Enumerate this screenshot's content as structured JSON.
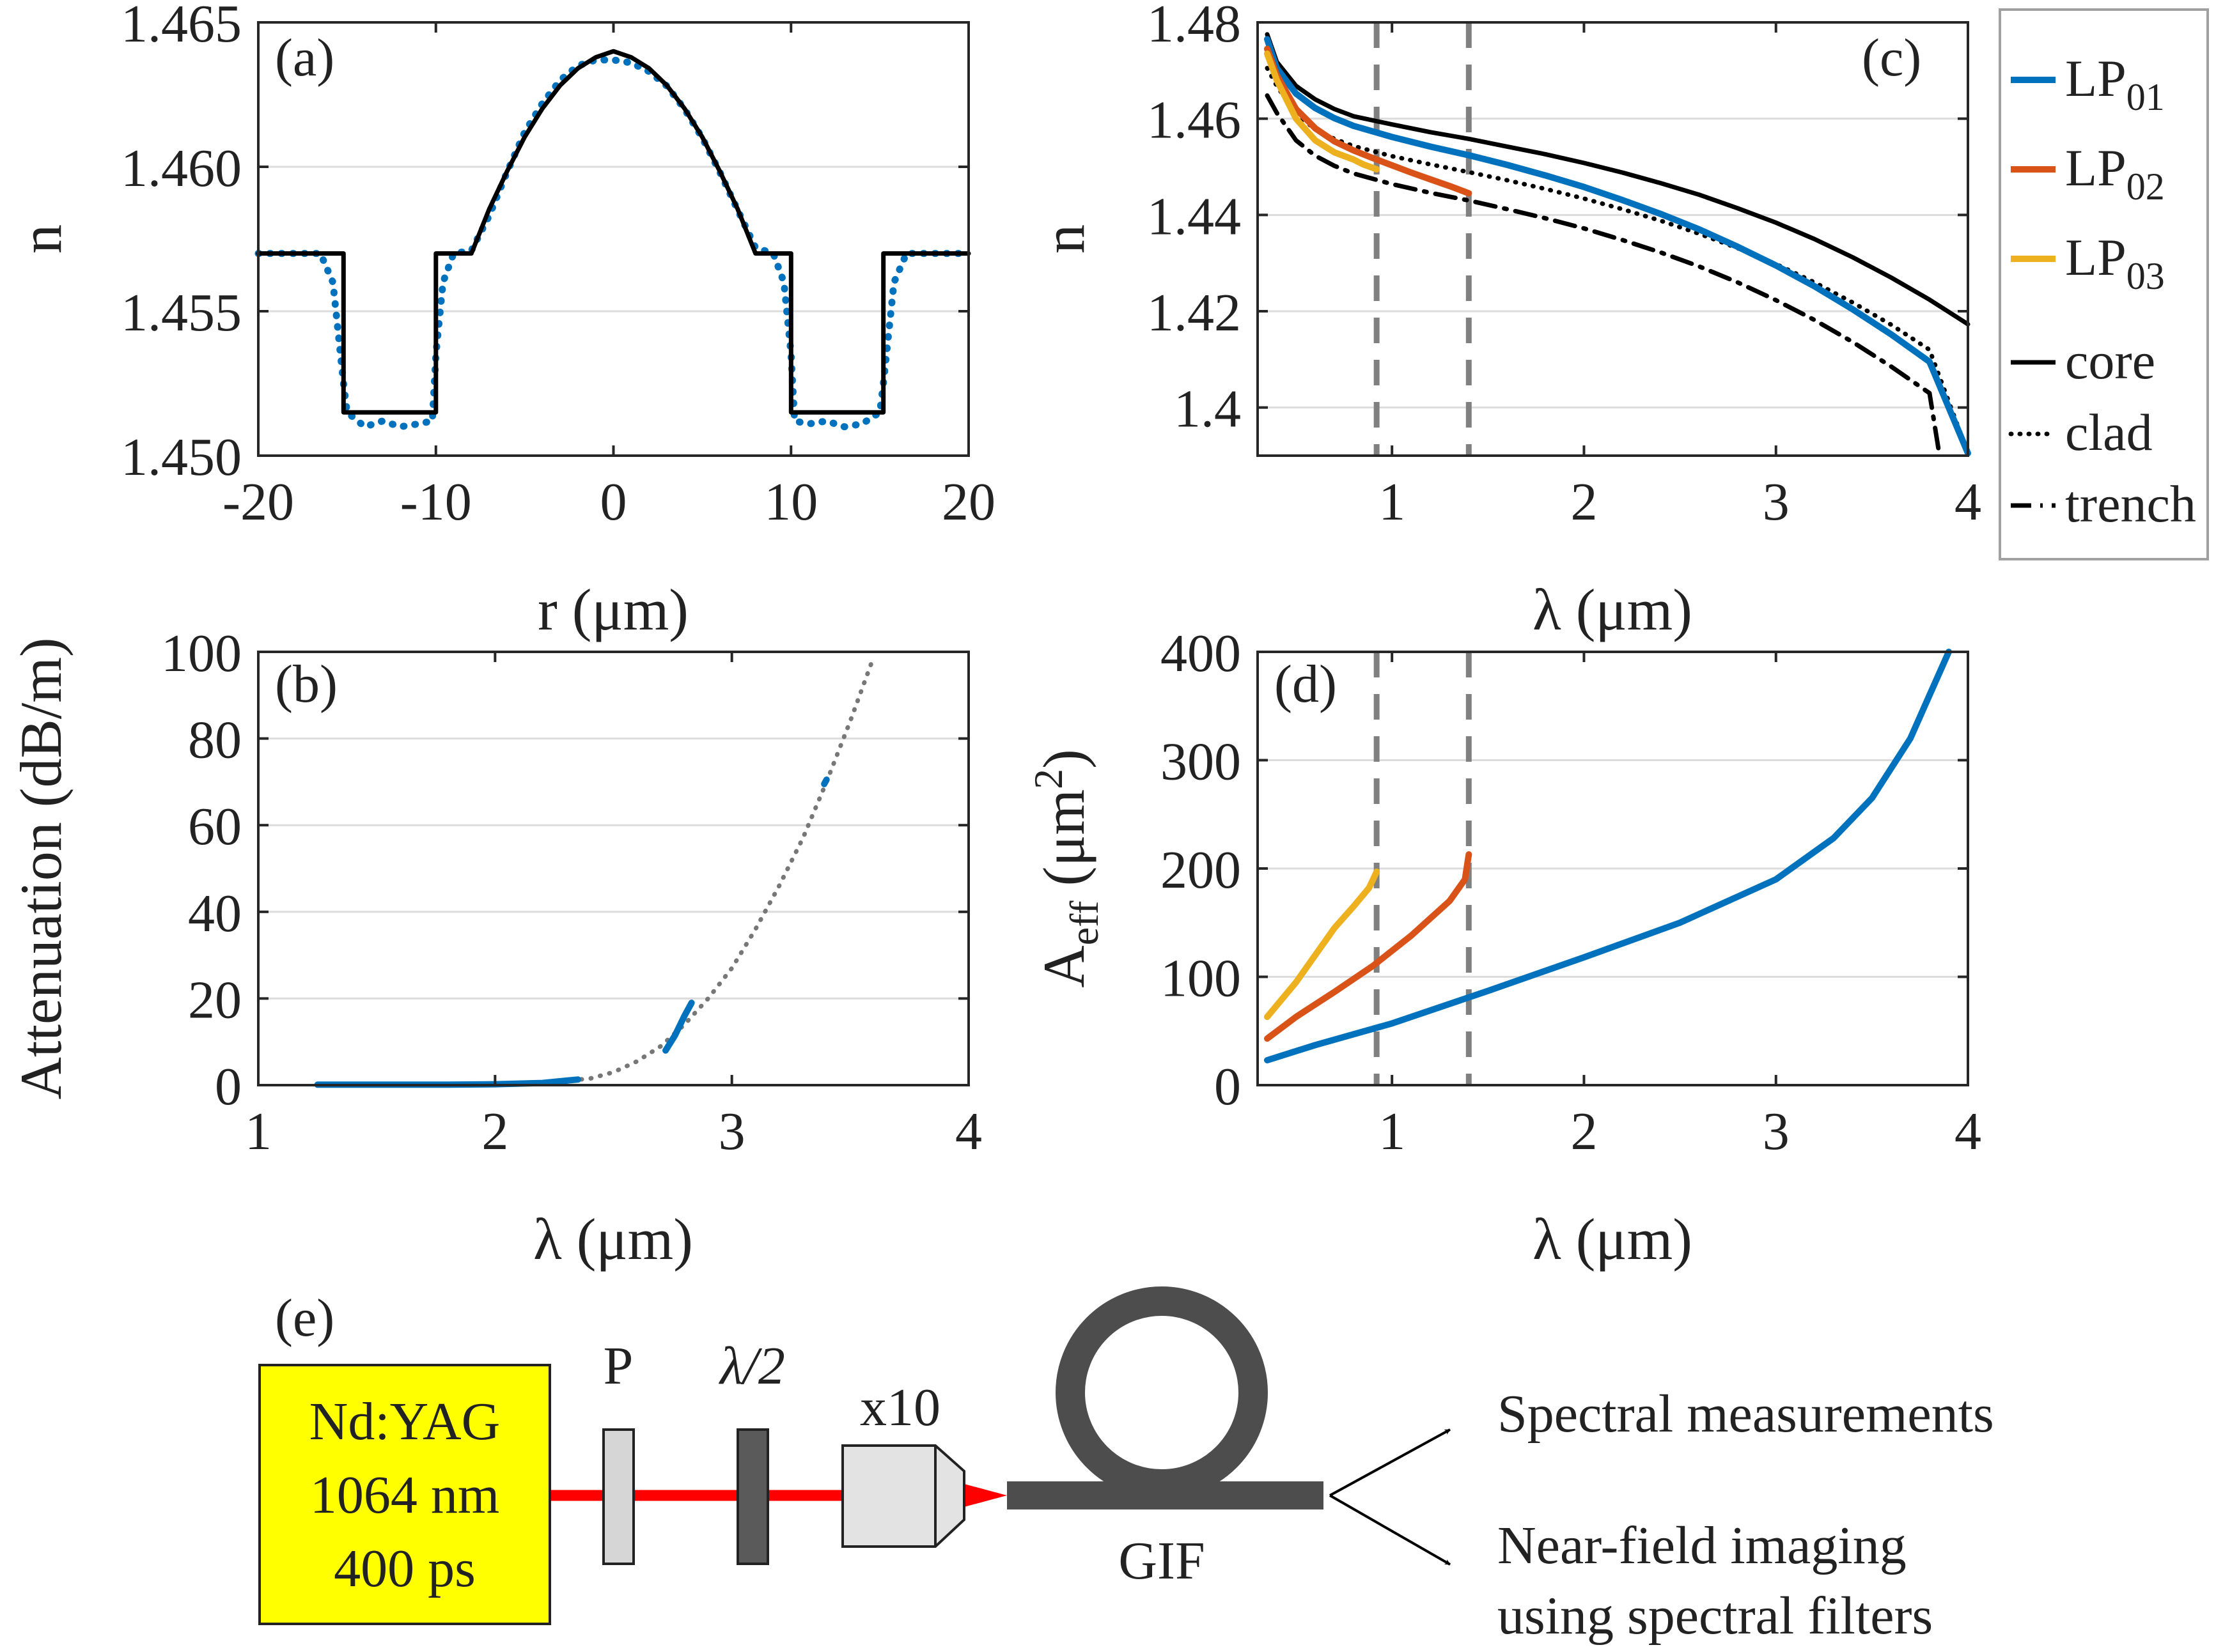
{
  "colors": {
    "lp01": "#0072bd",
    "lp02": "#d95319",
    "lp03": "#edb120",
    "model": "#000000",
    "fit": "#777777",
    "cutoff": "#808080",
    "laser_box": "#ffff00",
    "beam": "#ff0000",
    "fiber": "#4d4d4d"
  },
  "chart_data": [
    {
      "id": "a",
      "type": "line",
      "panel_label": "(a)",
      "xlabel": "r (μm)",
      "ylabel": "n",
      "xlim": [
        -20,
        20
      ],
      "ylim": [
        1.45,
        1.465
      ],
      "xticks": [
        "-20",
        "-10",
        "0",
        "10",
        "20"
      ],
      "yticks": [
        "1.450",
        "1.455",
        "1.460",
        "1.465"
      ],
      "grid": "horizontal",
      "series": [
        {
          "style": "dotted-blue",
          "x": [
            -20,
            -16.5,
            -15.8,
            -15.2,
            -15,
            -14,
            -13,
            -12,
            -11,
            -10.2,
            -10,
            -9.6,
            -9,
            -8,
            -7,
            -6,
            -5,
            -4,
            -3,
            -2,
            -1,
            0,
            1,
            2,
            3,
            4,
            5,
            6,
            7,
            8,
            9,
            9.6,
            10,
            10.2,
            11,
            12,
            13,
            14,
            15,
            15.2,
            15.8,
            16.5,
            20
          ],
          "y": [
            1.457,
            1.457,
            1.456,
            1.4525,
            1.4515,
            1.451,
            1.4512,
            1.451,
            1.4511,
            1.4512,
            1.4535,
            1.456,
            1.457,
            1.4571,
            1.4583,
            1.4598,
            1.4612,
            1.4622,
            1.463,
            1.4635,
            1.4637,
            1.4637,
            1.4636,
            1.4633,
            1.4628,
            1.462,
            1.461,
            1.4598,
            1.4585,
            1.4572,
            1.457,
            1.456,
            1.4535,
            1.4512,
            1.4511,
            1.4512,
            1.451,
            1.4511,
            1.4515,
            1.4525,
            1.456,
            1.457,
            1.457
          ]
        },
        {
          "style": "solid-black",
          "x": [
            -20,
            -15.2,
            -15.2,
            -10,
            -10,
            -8,
            -7,
            -6,
            -5,
            -4,
            -3,
            -2,
            -1,
            0,
            1,
            2,
            3,
            4,
            5,
            6,
            7,
            8,
            10,
            10,
            15.2,
            15.2,
            20
          ],
          "y": [
            1.457,
            1.457,
            1.4515,
            1.4515,
            1.457,
            1.457,
            1.45853,
            1.45983,
            1.46103,
            1.46202,
            1.46282,
            1.46341,
            1.46379,
            1.464,
            1.46379,
            1.46341,
            1.46282,
            1.46202,
            1.46103,
            1.45983,
            1.45853,
            1.457,
            1.457,
            1.4515,
            1.4515,
            1.457,
            1.457
          ]
        }
      ]
    },
    {
      "id": "b",
      "type": "line",
      "panel_label": "(b)",
      "xlabel": "λ (μm)",
      "ylabel": "Attenuation (dB/m)",
      "xlim": [
        1,
        4
      ],
      "ylim": [
        0,
        100
      ],
      "xticks": [
        "1",
        "2",
        "3",
        "4"
      ],
      "yticks": [
        "0",
        "20",
        "40",
        "60",
        "80",
        "100"
      ],
      "grid": "horizontal",
      "series": [
        {
          "style": "dotted-gray",
          "x": [
            2.0,
            2.2,
            2.4,
            2.5,
            2.6,
            2.7,
            2.8,
            2.9,
            3.0,
            3.1,
            3.2,
            3.3,
            3.4,
            3.5,
            3.6
          ],
          "y": [
            0.2,
            0.6,
            1.5,
            3.0,
            5.5,
            9.0,
            14.0,
            20.0,
            27.0,
            36.0,
            46.0,
            57.0,
            70.0,
            84.0,
            99.0
          ]
        },
        {
          "style": "solid-blue",
          "x": [
            1.25,
            1.5,
            1.8,
            2.0,
            2.2,
            2.35
          ],
          "y": [
            0.1,
            0.1,
            0.1,
            0.2,
            0.5,
            1.3
          ]
        },
        {
          "style": "solid-blue",
          "x": [
            2.72,
            2.76,
            2.8,
            2.83
          ],
          "y": [
            8.0,
            11.5,
            16.0,
            19.0
          ]
        },
        {
          "style": "solid-blue",
          "x": [
            3.39,
            3.4
          ],
          "y": [
            69.5,
            70.5
          ]
        }
      ]
    },
    {
      "id": "c",
      "type": "line",
      "panel_label": "(c)",
      "xlabel": "λ (μm)",
      "ylabel": "n",
      "xlim": [
        0.3,
        4
      ],
      "ylim": [
        1.39,
        1.48
      ],
      "xticks": [
        "1",
        "2",
        "3",
        "4"
      ],
      "yticks": [
        "1.4",
        "1.42",
        "1.44",
        "1.46",
        "1.48"
      ],
      "grid": "horizontal",
      "cutoffs": [
        0.92,
        1.4
      ],
      "legend_position": "outside-right",
      "legend": [
        {
          "main": "LP",
          "sub": "01",
          "style": "solid-blue"
        },
        {
          "main": "LP",
          "sub": "02",
          "style": "solid-orange"
        },
        {
          "main": "LP",
          "sub": "03",
          "style": "solid-yellow"
        },
        {
          "main": "core",
          "sub": "",
          "style": "solid-black"
        },
        {
          "main": "clad",
          "sub": "",
          "style": "dotted-black"
        },
        {
          "main": "trench",
          "sub": "",
          "style": "dashdot-black"
        }
      ],
      "series": [
        {
          "name": "core",
          "style": "solid-black",
          "x": [
            0.35,
            0.4,
            0.5,
            0.6,
            0.7,
            0.8,
            1.0,
            1.2,
            1.4,
            1.6,
            1.8,
            2.0,
            2.2,
            2.4,
            2.6,
            2.8,
            3.0,
            3.2,
            3.4,
            3.6,
            3.8,
            4.0
          ],
          "y": [
            1.4775,
            1.4718,
            1.4668,
            1.464,
            1.462,
            1.4605,
            1.4588,
            1.4572,
            1.4558,
            1.4542,
            1.4526,
            1.4508,
            1.4488,
            1.4466,
            1.4442,
            1.4414,
            1.4384,
            1.435,
            1.4312,
            1.427,
            1.4224,
            1.4173
          ]
        },
        {
          "name": "clad",
          "style": "dotted-black",
          "x": [
            0.35,
            0.4,
            0.5,
            0.6,
            0.7,
            0.8,
            1.0,
            1.2,
            1.4,
            1.6,
            1.8,
            2.0,
            2.2,
            2.4,
            2.6,
            2.8,
            3.0,
            3.2,
            3.4,
            3.6,
            3.8,
            4.0
          ],
          "y": [
            1.4705,
            1.4668,
            1.461,
            1.4578,
            1.4558,
            1.4543,
            1.4522,
            1.4505,
            1.4489,
            1.4472,
            1.4454,
            1.4434,
            1.4412,
            1.4388,
            1.4361,
            1.4331,
            1.4298,
            1.426,
            1.4218,
            1.4172,
            1.412,
            1.3905
          ]
        },
        {
          "name": "trench",
          "style": "dashdot-black",
          "x": [
            0.35,
            0.4,
            0.5,
            0.6,
            0.7,
            0.8,
            1.0,
            1.2,
            1.4,
            1.6,
            1.8,
            2.0,
            2.2,
            2.4,
            2.6,
            2.8,
            3.0,
            3.2,
            3.4,
            3.6,
            3.8,
            3.85
          ],
          "y": [
            1.4648,
            1.4612,
            1.4555,
            1.4523,
            1.4502,
            1.4486,
            1.4464,
            1.4446,
            1.443,
            1.4412,
            1.4393,
            1.4372,
            1.4348,
            1.4322,
            1.4293,
            1.426,
            1.4223,
            1.4182,
            1.4136,
            1.4085,
            1.403,
            1.3905
          ]
        },
        {
          "name": "LP01",
          "style": "solid-blue",
          "x": [
            0.35,
            0.4,
            0.5,
            0.6,
            0.7,
            0.8,
            1.0,
            1.2,
            1.4,
            1.6,
            1.8,
            2.0,
            2.2,
            2.4,
            2.6,
            2.8,
            3.0,
            3.2,
            3.4,
            3.6,
            3.8,
            4.0
          ],
          "y": [
            1.4765,
            1.4705,
            1.4652,
            1.4622,
            1.4601,
            1.4585,
            1.4562,
            1.4542,
            1.4524,
            1.4504,
            1.4482,
            1.4458,
            1.4431,
            1.4402,
            1.437,
            1.4334,
            1.4295,
            1.4252,
            1.4204,
            1.4152,
            1.4095,
            1.3905
          ]
        },
        {
          "name": "LP02",
          "style": "solid-orange",
          "x": [
            0.35,
            0.4,
            0.5,
            0.6,
            0.7,
            0.8,
            0.9,
            1.0,
            1.1,
            1.2,
            1.3,
            1.4
          ],
          "y": [
            1.4745,
            1.469,
            1.462,
            1.458,
            1.4553,
            1.4534,
            1.4518,
            1.4503,
            1.4488,
            1.4474,
            1.446,
            1.4445
          ]
        },
        {
          "name": "LP03",
          "style": "solid-yellow",
          "x": [
            0.35,
            0.4,
            0.5,
            0.6,
            0.7,
            0.8,
            0.85,
            0.92
          ],
          "y": [
            1.4735,
            1.468,
            1.46,
            1.4555,
            1.453,
            1.4515,
            1.4505,
            1.4495
          ]
        }
      ]
    },
    {
      "id": "d",
      "type": "line",
      "panel_label": "(d)",
      "xlabel": "λ (μm)",
      "ylabel_main": "A",
      "ylabel_sub": "eff",
      "ylabel_rest": " (μm",
      "ylabel_sup": "2",
      "ylabel_close": ")",
      "xlim": [
        0.3,
        4
      ],
      "ylim": [
        0,
        400
      ],
      "xticks": [
        "1",
        "2",
        "3",
        "4"
      ],
      "yticks": [
        "0",
        "100",
        "200",
        "300",
        "400"
      ],
      "grid": "horizontal",
      "cutoffs": [
        0.92,
        1.4
      ],
      "series": [
        {
          "name": "LP01",
          "style": "solid-blue",
          "x": [
            0.35,
            0.6,
            1.0,
            1.5,
            2.0,
            2.5,
            3.0,
            3.3,
            3.5,
            3.7,
            3.8,
            3.9
          ],
          "y": [
            23,
            37,
            57,
            87,
            118,
            150,
            190,
            228,
            265,
            320,
            360,
            400
          ]
        },
        {
          "name": "LP02",
          "style": "solid-orange",
          "x": [
            0.35,
            0.5,
            0.7,
            0.9,
            1.1,
            1.3,
            1.38,
            1.4
          ],
          "y": [
            43,
            63,
            86,
            110,
            138,
            170,
            190,
            213
          ]
        },
        {
          "name": "LP03",
          "style": "solid-yellow",
          "x": [
            0.35,
            0.5,
            0.6,
            0.7,
            0.8,
            0.88,
            0.92
          ],
          "y": [
            63,
            95,
            120,
            145,
            165,
            182,
            197
          ]
        }
      ]
    }
  ],
  "setup": {
    "panel_label": "(e)",
    "laser_lines": [
      "Nd:YAG",
      "1064 nm",
      "400 ps"
    ],
    "polarizer_label": "P",
    "waveplate_label": "λ/2",
    "objective_label": "x10",
    "fiber_label": "GIF",
    "output_1": "Spectral measurements",
    "output_2_lines": [
      "Near-field imaging",
      "using spectral filters"
    ]
  }
}
